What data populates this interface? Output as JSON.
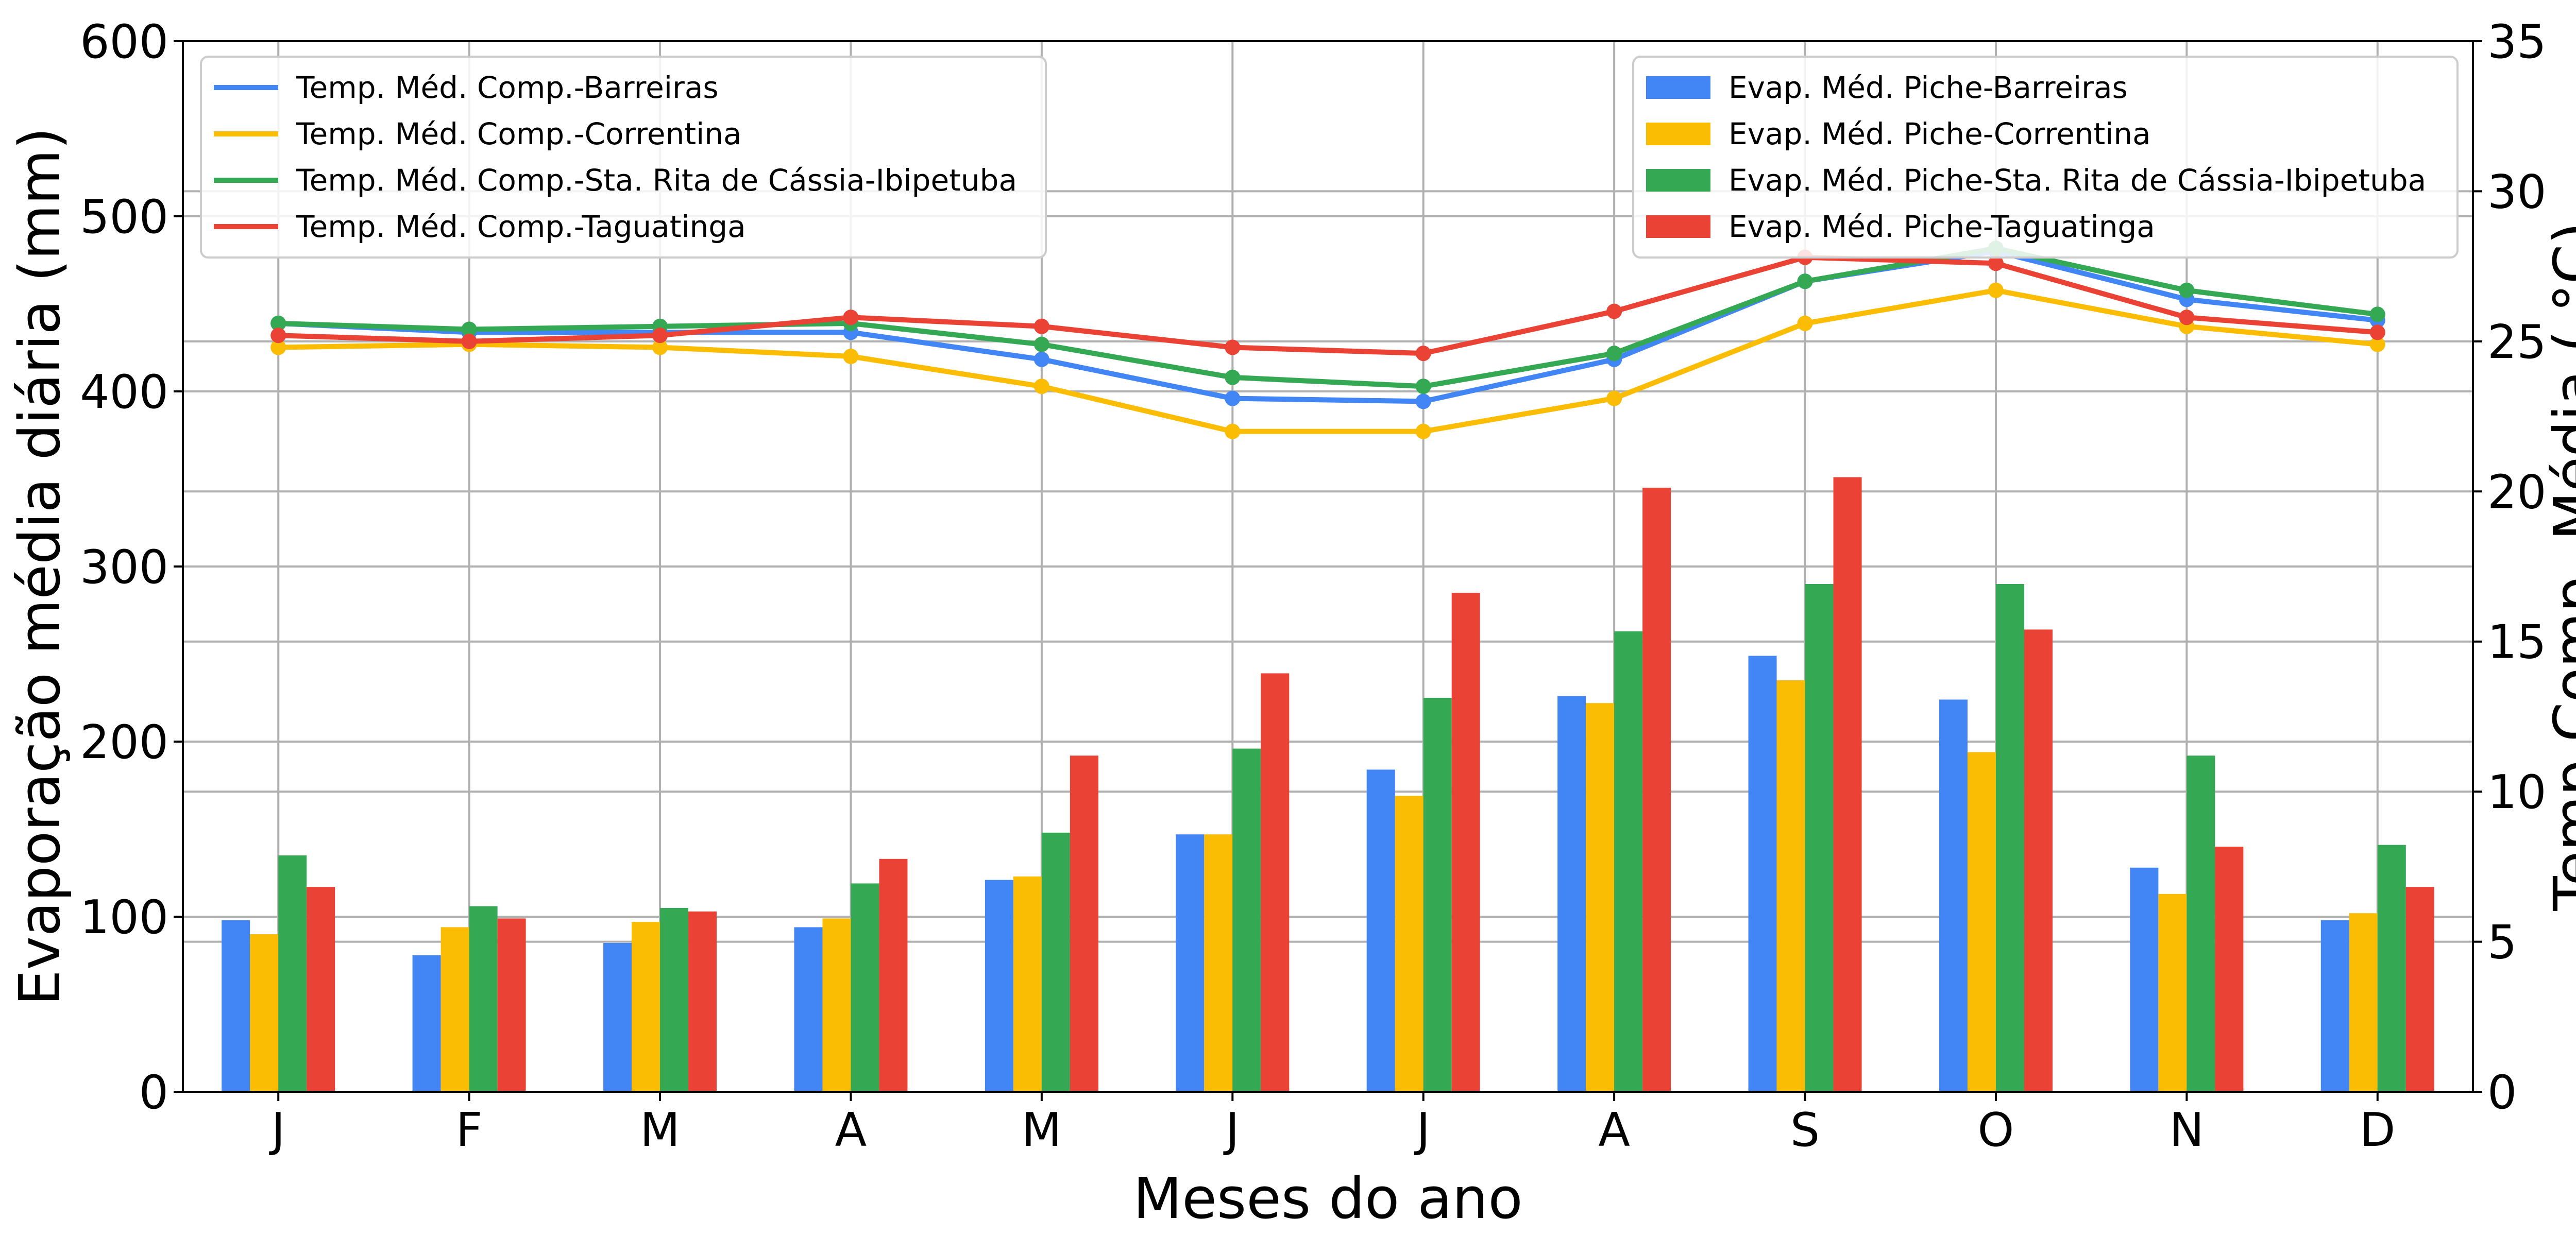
{
  "chart_data": {
    "type": "bar+line",
    "categories": [
      "J",
      "F",
      "M",
      "A",
      "M",
      "J",
      "J",
      "A",
      "S",
      "O",
      "N",
      "D"
    ],
    "xlabel": "Meses do ano",
    "ylabel_left": "Evaporação média diária (mm)",
    "ylabel_right": "Temp Comp. Média  ( °C)",
    "ylim_left": [
      0,
      600
    ],
    "ylim_right": [
      0,
      35
    ],
    "yticks_left": [
      0,
      100,
      200,
      300,
      400,
      500,
      600
    ],
    "yticks_right": [
      0,
      5,
      10,
      15,
      20,
      25,
      30,
      35
    ],
    "grid": true,
    "bar_series": [
      {
        "name": "Evap. Méd. Piche-Barreiras",
        "color": "#4285F4",
        "values": [
          98,
          78,
          85,
          94,
          121,
          147,
          184,
          226,
          249,
          224,
          128,
          98
        ]
      },
      {
        "name": "Evap. Méd. Piche-Correntina",
        "color": "#FBBC04",
        "values": [
          90,
          94,
          97,
          99,
          123,
          147,
          169,
          222,
          235,
          194,
          113,
          102
        ]
      },
      {
        "name": "Evap. Méd. Piche-Sta. Rita de Cássia-Ibipetuba",
        "color": "#34A853",
        "values": [
          135,
          106,
          105,
          119,
          148,
          196,
          225,
          263,
          290,
          290,
          192,
          141
        ]
      },
      {
        "name": "Evap. Méd. Piche-Taguatinga",
        "color": "#EA4335",
        "values": [
          117,
          99,
          103,
          133,
          192,
          239,
          285,
          345,
          351,
          264,
          140,
          117
        ]
      }
    ],
    "line_series": [
      {
        "name": "Temp. Méd. Comp.-Barreiras",
        "color": "#4285F4",
        "values": [
          25.6,
          25.3,
          25.3,
          25.3,
          24.4,
          23.1,
          23.0,
          24.4,
          27.0,
          28.0,
          26.4,
          25.7
        ]
      },
      {
        "name": "Temp. Méd. Comp.-Correntina",
        "color": "#FBBC04",
        "values": [
          24.8,
          24.9,
          24.8,
          24.5,
          23.5,
          22.0,
          22.0,
          23.1,
          25.6,
          26.7,
          25.5,
          24.9
        ]
      },
      {
        "name": "Temp. Méd. Comp.-Sta. Rita de Cássia-Ibipetuba",
        "color": "#34A853",
        "values": [
          25.6,
          25.4,
          25.5,
          25.6,
          24.9,
          23.8,
          23.5,
          24.6,
          27.0,
          28.1,
          26.7,
          25.9
        ]
      },
      {
        "name": "Temp. Méd. Comp.-Taguatinga",
        "color": "#EA4335",
        "values": [
          25.2,
          25.0,
          25.2,
          25.8,
          25.5,
          24.8,
          24.6,
          26.0,
          27.8,
          27.6,
          25.8,
          25.3
        ]
      }
    ],
    "legend_lines_position": "upper-left",
    "legend_bars_position": "upper-right"
  }
}
